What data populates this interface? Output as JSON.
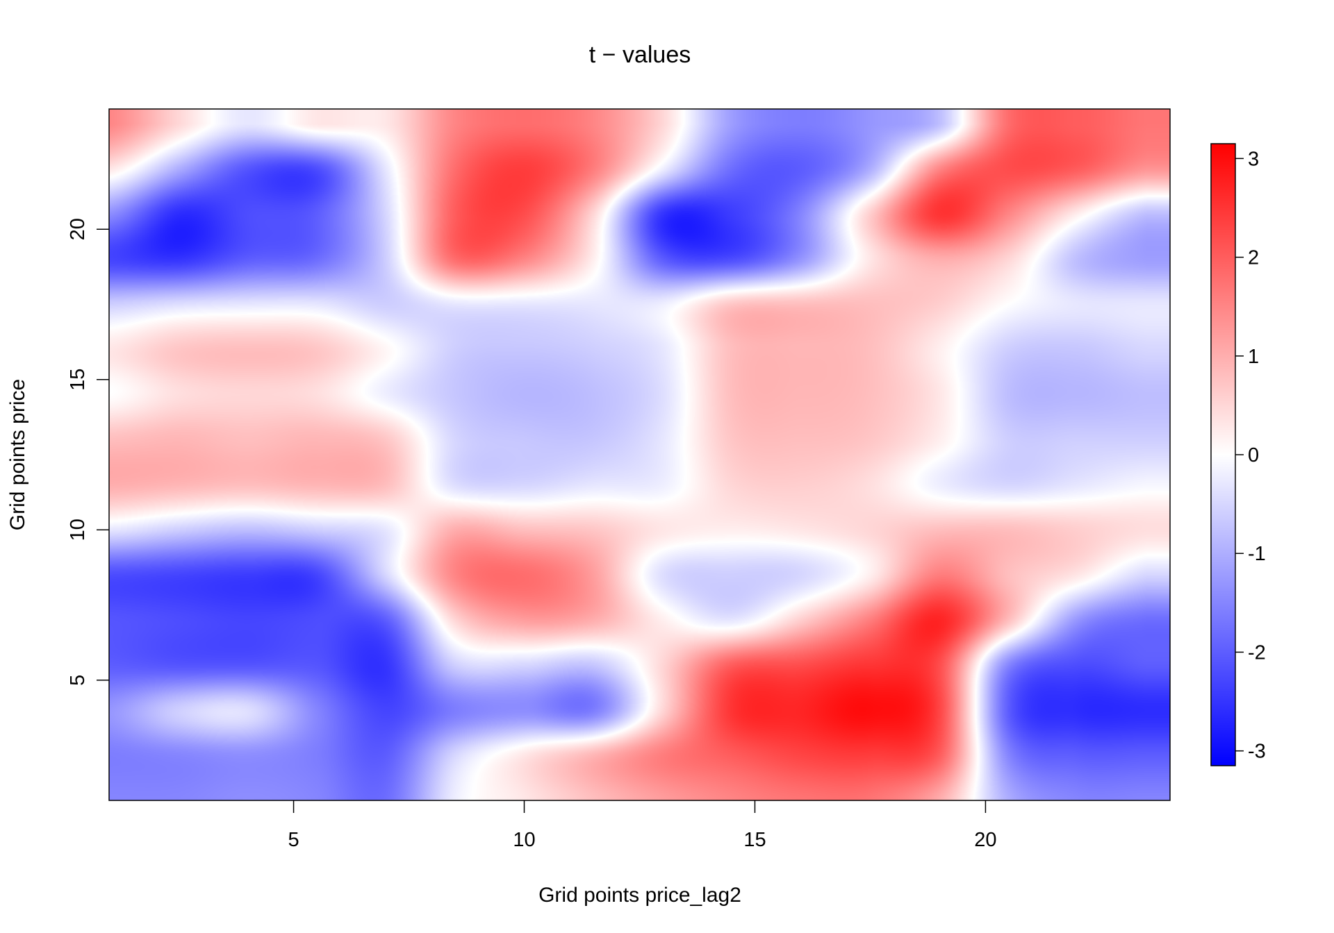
{
  "chart_data": {
    "type": "heatmap",
    "title": "t − values",
    "xlabel": "Grid points price_lag2",
    "ylabel": "Grid points price",
    "xlim": [
      1,
      24
    ],
    "ylim": [
      1,
      24
    ],
    "x_ticks": [
      5,
      10,
      15,
      20
    ],
    "y_ticks": [
      5,
      10,
      15,
      20
    ],
    "grid": false,
    "legend": {
      "position": "right",
      "min": -3.15,
      "max": 3.15,
      "ticks": [
        3,
        2,
        1,
        0,
        -1,
        -2,
        -3
      ],
      "tick_labels": [
        "3",
        "2",
        "1",
        "0",
        "-1",
        "-2",
        "-3"
      ],
      "low_color": "#0000ff",
      "mid_color": "#ffffff",
      "high_color": "#ff0000"
    },
    "x": [
      1,
      2.5,
      4,
      5.5,
      7,
      8.5,
      10,
      11.5,
      13,
      14.5,
      16,
      17.5,
      19,
      20.5,
      22,
      23.5
    ],
    "y": [
      1,
      2.5,
      4,
      5.5,
      7,
      8.5,
      10,
      11.5,
      13,
      14.5,
      16,
      17.5,
      19,
      20.5,
      22,
      23.5
    ],
    "z": [
      [
        -1.5,
        -1.5,
        -1.4,
        -1.5,
        -1.8,
        -0.2,
        0.3,
        0.8,
        1.2,
        1.5,
        1.7,
        1.7,
        1.0,
        -1.0,
        -1.5,
        -1.5
      ],
      [
        -1.6,
        -1.5,
        -1.4,
        -1.6,
        -2.0,
        -0.5,
        0.3,
        0.9,
        1.6,
        2.0,
        2.3,
        2.4,
        2.0,
        -1.5,
        -2.0,
        -2.0
      ],
      [
        -1.3,
        -0.6,
        -0.4,
        -1.5,
        -2.3,
        -1.6,
        -1.4,
        -1.6,
        0.5,
        2.5,
        2.7,
        3.0,
        2.3,
        -2.0,
        -2.6,
        -2.6
      ],
      [
        -2.0,
        -2.1,
        -2.1,
        -2.1,
        -2.5,
        -0.6,
        -0.5,
        -0.7,
        0.5,
        2.0,
        2.2,
        2.5,
        2.2,
        -1.5,
        -2.2,
        -2.0
      ],
      [
        -2.1,
        -2.2,
        -2.3,
        -2.2,
        -2.0,
        0.5,
        1.2,
        1.0,
        0.2,
        -0.3,
        0.6,
        1.6,
        2.7,
        0.8,
        -1.3,
        -1.8
      ],
      [
        -2.2,
        -2.3,
        -2.4,
        -2.3,
        -0.5,
        1.5,
        1.8,
        1.2,
        -0.4,
        -0.6,
        -0.5,
        0.2,
        1.6,
        0.8,
        0.3,
        -0.5
      ],
      [
        -0.3,
        -0.6,
        -0.8,
        -0.6,
        -0.3,
        1.0,
        0.8,
        0.7,
        0.3,
        0.2,
        0.3,
        0.5,
        0.8,
        0.8,
        0.6,
        0.4
      ],
      [
        1.0,
        0.9,
        0.8,
        0.9,
        0.8,
        -0.4,
        -0.5,
        -0.3,
        -0.2,
        0.5,
        0.6,
        0.4,
        -0.2,
        -0.5,
        -0.3,
        -0.1
      ],
      [
        0.8,
        0.9,
        0.8,
        0.9,
        0.7,
        -0.5,
        -0.7,
        -0.7,
        -0.3,
        0.7,
        0.8,
        0.7,
        0.2,
        -0.6,
        -0.6,
        -0.6
      ],
      [
        0.0,
        0.4,
        0.5,
        0.4,
        -0.2,
        -0.7,
        -0.9,
        -0.8,
        -0.4,
        0.8,
        0.9,
        0.8,
        0.3,
        -0.8,
        -0.9,
        -0.8
      ],
      [
        0.3,
        0.7,
        0.8,
        0.7,
        0.1,
        -0.6,
        -0.7,
        -0.6,
        -0.3,
        0.8,
        0.9,
        0.8,
        0.2,
        -0.6,
        -0.7,
        -0.5
      ],
      [
        -0.6,
        -0.4,
        -0.3,
        -0.3,
        -0.6,
        -0.3,
        -0.3,
        -0.3,
        -0.2,
        0.7,
        0.8,
        0.8,
        0.6,
        0.0,
        -0.3,
        -0.3
      ],
      [
        -2.3,
        -2.5,
        -2.0,
        -1.8,
        -0.6,
        1.8,
        1.5,
        0.2,
        -2.0,
        -2.2,
        -1.3,
        0.3,
        1.0,
        0.5,
        -0.8,
        -1.2
      ],
      [
        -1.4,
        -2.6,
        -2.2,
        -2.0,
        -0.5,
        2.0,
        2.2,
        0.5,
        -2.5,
        -2.4,
        -1.5,
        0.6,
        2.5,
        1.5,
        0.2,
        -0.8
      ],
      [
        0.3,
        -1.0,
        -2.1,
        -2.2,
        -0.3,
        1.8,
        2.4,
        1.6,
        -0.2,
        -1.8,
        -2.0,
        -1.0,
        1.5,
        2.2,
        2.0,
        1.3
      ],
      [
        1.5,
        0.5,
        -0.3,
        0.3,
        0.3,
        1.5,
        1.8,
        1.5,
        0.5,
        -1.2,
        -1.6,
        -1.3,
        -0.8,
        1.8,
        2.0,
        1.7
      ]
    ]
  }
}
